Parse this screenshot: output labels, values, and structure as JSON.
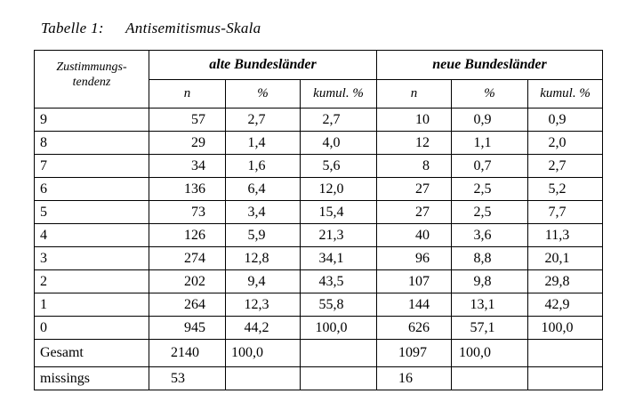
{
  "caption": {
    "number": "Tabelle 1:",
    "title": "Antisemitismus-Skala"
  },
  "header": {
    "tendency_label": "Zustimmungs-\ntendenz",
    "group1": "alte Bundesländer",
    "group2": "neue Bundesländer",
    "col_n": "n",
    "col_pct": "%",
    "col_kum": "kumul. %"
  },
  "rows": [
    {
      "label": "9",
      "a_n": "57",
      "a_pct": "2,7",
      "a_kum": "2,7",
      "b_n": "10",
      "b_pct": "0,9",
      "b_kum": "0,9"
    },
    {
      "label": "8",
      "a_n": "29",
      "a_pct": "1,4",
      "a_kum": "4,0",
      "b_n": "12",
      "b_pct": "1,1",
      "b_kum": "2,0"
    },
    {
      "label": "7",
      "a_n": "34",
      "a_pct": "1,6",
      "a_kum": "5,6",
      "b_n": "8",
      "b_pct": "0,7",
      "b_kum": "2,7"
    },
    {
      "label": "6",
      "a_n": "136",
      "a_pct": "6,4",
      "a_kum": "12,0",
      "b_n": "27",
      "b_pct": "2,5",
      "b_kum": "5,2"
    },
    {
      "label": "5",
      "a_n": "73",
      "a_pct": "3,4",
      "a_kum": "15,4",
      "b_n": "27",
      "b_pct": "2,5",
      "b_kum": "7,7"
    },
    {
      "label": "4",
      "a_n": "126",
      "a_pct": "5,9",
      "a_kum": "21,3",
      "b_n": "40",
      "b_pct": "3,6",
      "b_kum": "11,3"
    },
    {
      "label": "3",
      "a_n": "274",
      "a_pct": "12,8",
      "a_kum": "34,1",
      "b_n": "96",
      "b_pct": "8,8",
      "b_kum": "20,1"
    },
    {
      "label": "2",
      "a_n": "202",
      "a_pct": "9,4",
      "a_kum": "43,5",
      "b_n": "107",
      "b_pct": "9,8",
      "b_kum": "29,8"
    },
    {
      "label": "1",
      "a_n": "264",
      "a_pct": "12,3",
      "a_kum": "55,8",
      "b_n": "144",
      "b_pct": "13,1",
      "b_kum": "42,9"
    },
    {
      "label": "0",
      "a_n": "945",
      "a_pct": "44,2",
      "a_kum": "100,0",
      "b_n": "626",
      "b_pct": "57,1",
      "b_kum": "100,0"
    }
  ],
  "total": {
    "label": "Gesamt",
    "a_n": "2140",
    "a_pct": "100,0",
    "b_n": "1097",
    "b_pct": "100,0"
  },
  "missing": {
    "label": "missings",
    "a_n": "53",
    "b_n": "16"
  }
}
